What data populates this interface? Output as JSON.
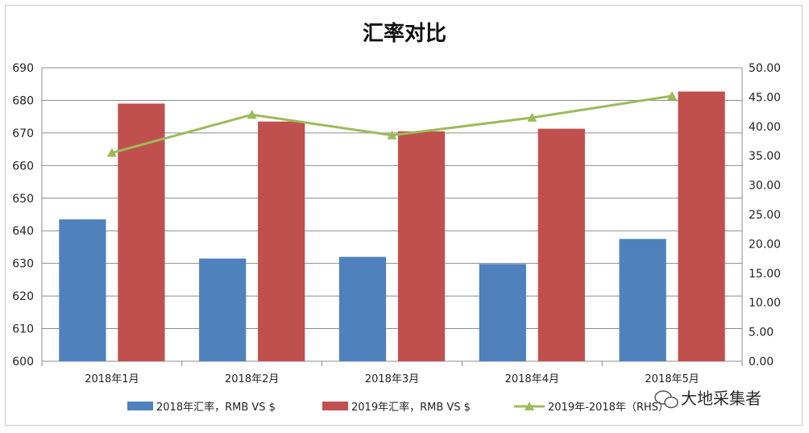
{
  "chart_data": {
    "type": "bar",
    "title": "汇率对比",
    "categories": [
      "2018年1月",
      "2018年2月",
      "2018年3月",
      "2018年4月",
      "2018年5月"
    ],
    "y_left": {
      "ylim": [
        600,
        690
      ],
      "step": 10,
      "ticks": [
        "600",
        "610",
        "620",
        "630",
        "640",
        "650",
        "660",
        "670",
        "680",
        "690"
      ]
    },
    "y_right": {
      "ylim": [
        0,
        50
      ],
      "step": 5,
      "ticks": [
        "0.00",
        "5.00",
        "10.00",
        "15.00",
        "20.00",
        "25.00",
        "30.00",
        "35.00",
        "40.00",
        "45.00",
        "50.00"
      ]
    },
    "grid": true,
    "legend_position": "bottom",
    "series": [
      {
        "name": "2018年汇率，RMB VS $",
        "type": "bar",
        "axis": "left",
        "color": "#4f81bd",
        "values": [
          643.5,
          631.5,
          632.0,
          629.8,
          637.5
        ]
      },
      {
        "name": "2019年汇率，RMB VS $",
        "type": "bar",
        "axis": "left",
        "color": "#c0504d",
        "values": [
          679.0,
          673.5,
          670.5,
          671.3,
          682.7
        ]
      },
      {
        "name": "2019年-2018年（RHS）",
        "type": "line",
        "axis": "right",
        "color": "#9bbb59",
        "marker": "triangle",
        "values": [
          35.5,
          42.0,
          38.5,
          41.5,
          45.2
        ]
      }
    ]
  },
  "watermark": {
    "text": "大地采集者",
    "icon": "wechat-icon"
  }
}
